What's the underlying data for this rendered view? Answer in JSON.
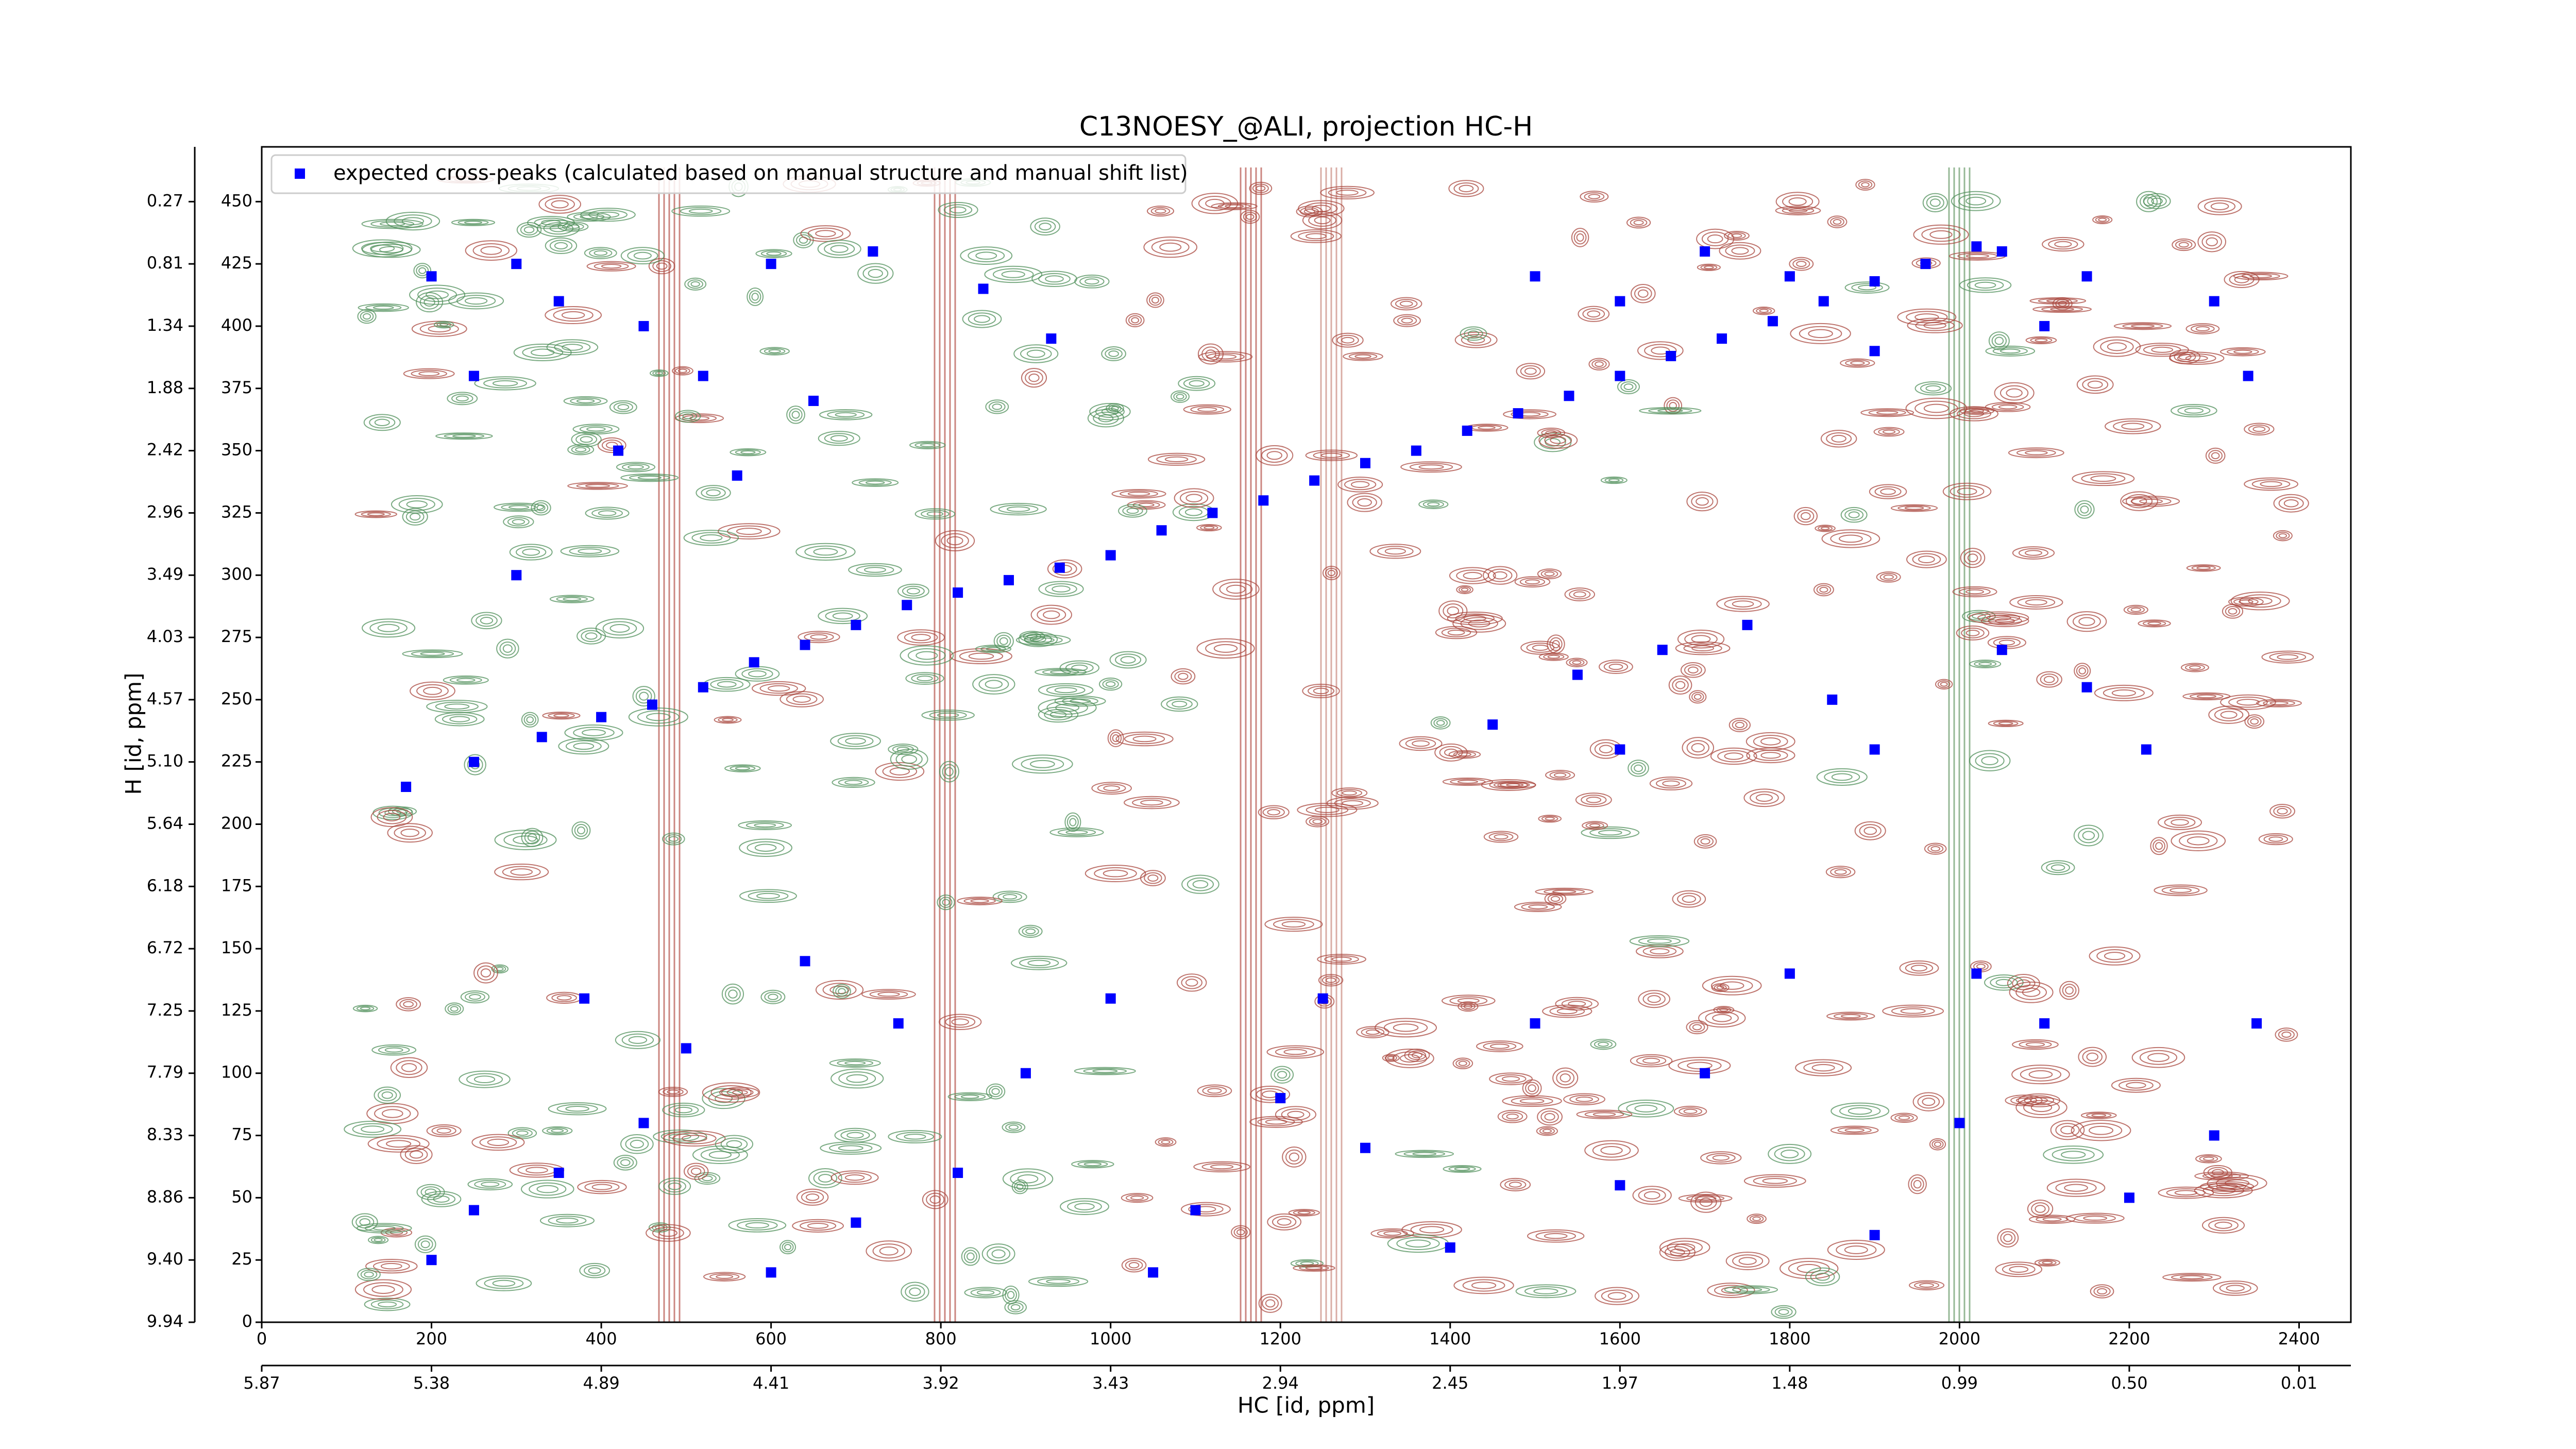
{
  "chart_data": {
    "type": "scatter",
    "title": "C13NOESY_@ALI, projection HC-H",
    "xlabel": "HC [id, ppm]",
    "ylabel": "H [id, ppm]",
    "xlim": [
      0,
      2461
    ],
    "ylim": [
      0,
      472
    ],
    "xticks": [
      0,
      200,
      400,
      600,
      800,
      1000,
      1200,
      1400,
      1600,
      1800,
      2000,
      2200,
      2400
    ],
    "yticks": [
      0,
      25,
      50,
      75,
      100,
      125,
      150,
      175,
      200,
      225,
      250,
      275,
      300,
      325,
      350,
      375,
      400,
      425,
      450
    ],
    "x_ppm_labels": [
      "5.87",
      "5.38",
      "4.89",
      "4.41",
      "3.92",
      "3.43",
      "2.94",
      "2.45",
      "1.97",
      "1.48",
      "0.99",
      "0.50",
      "0.01"
    ],
    "y_ppm_labels": [
      "9.94",
      "9.40",
      "8.86",
      "8.33",
      "7.79",
      "7.25",
      "6.72",
      "6.18",
      "5.64",
      "5.10",
      "4.57",
      "4.03",
      "3.49",
      "2.96",
      "2.42",
      "1.88",
      "1.34",
      "0.81",
      "0.27"
    ],
    "legend": "upper left",
    "series": [
      {
        "name": "expected cross-peaks (calculated based on manual structure and manual shift list)",
        "color": "#0000ff",
        "x": [
          170,
          250,
          330,
          400,
          460,
          520,
          580,
          640,
          700,
          760,
          820,
          880,
          940,
          1000,
          1060,
          1120,
          1180,
          1240,
          1300,
          1360,
          1420,
          1480,
          1540,
          1600,
          1660,
          1720,
          1780,
          1840,
          1900,
          1960,
          2020,
          200,
          300,
          350,
          450,
          520,
          600,
          650,
          720,
          850,
          930,
          250,
          420,
          560,
          300,
          1500,
          1600,
          1700,
          1800,
          1900,
          2050,
          2100,
          2150,
          2300,
          2340,
          1550,
          1650,
          1750,
          1850,
          1450,
          2050,
          2150,
          1600,
          1900,
          2220,
          200,
          250,
          350,
          450,
          500,
          600,
          700,
          820,
          900,
          1000,
          1100,
          1200,
          1300,
          1400,
          1500,
          1600,
          1700,
          1800,
          1900,
          2000,
          2100,
          2200,
          2300,
          2350,
          2020,
          1250,
          1050,
          640,
          750,
          380
        ],
        "values": [
          215,
          225,
          235,
          243,
          248,
          255,
          265,
          272,
          280,
          288,
          293,
          298,
          303,
          308,
          318,
          325,
          330,
          338,
          345,
          350,
          358,
          365,
          372,
          380,
          388,
          395,
          402,
          410,
          418,
          425,
          432,
          420,
          425,
          410,
          400,
          380,
          425,
          370,
          430,
          415,
          395,
          380,
          350,
          340,
          300,
          420,
          410,
          430,
          420,
          390,
          430,
          400,
          420,
          410,
          380,
          260,
          270,
          280,
          250,
          240,
          270,
          255,
          230,
          230,
          230,
          25,
          45,
          60,
          80,
          110,
          20,
          40,
          60,
          100,
          130,
          45,
          90,
          70,
          30,
          120,
          55,
          100,
          140,
          35,
          80,
          120,
          50,
          75,
          120,
          140,
          130,
          20,
          145,
          120,
          130
        ]
      }
    ]
  }
}
